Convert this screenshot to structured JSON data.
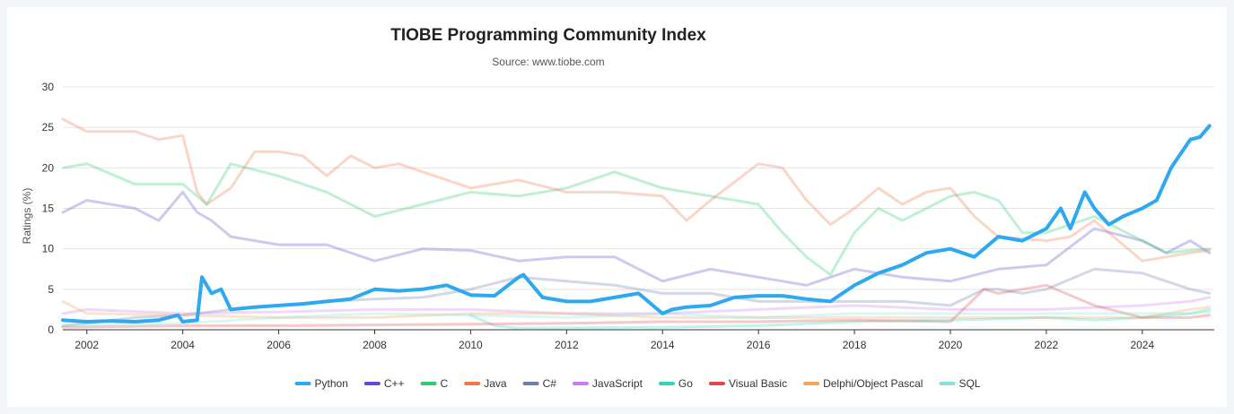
{
  "chart_data": {
    "type": "line",
    "title": "TIOBE Programming Community Index",
    "subtitle": "Source: www.tiobe.com",
    "xlabel": "",
    "ylabel": "Ratings (%)",
    "xlim": [
      2001.5,
      2025.5
    ],
    "ylim": [
      0,
      30
    ],
    "yticks": [
      0,
      5,
      10,
      15,
      20,
      25,
      30
    ],
    "xticks": [
      2002,
      2004,
      2006,
      2008,
      2010,
      2012,
      2014,
      2016,
      2018,
      2020,
      2022,
      2024
    ],
    "grid": true,
    "legend": "bottom",
    "highlighted_series": "Python",
    "series": [
      {
        "name": "Python",
        "color": "#2ea8f0",
        "x": [
          2001.5,
          2002,
          2002.5,
          2003,
          2003.5,
          2003.9,
          2004.0,
          2004.3,
          2004.4,
          2004.6,
          2004.8,
          2005,
          2005.5,
          2006,
          2006.5,
          2007,
          2007.5,
          2008,
          2008.5,
          2009,
          2009.5,
          2010,
          2010.5,
          2011,
          2011.1,
          2011.5,
          2012,
          2012.5,
          2013,
          2013.5,
          2014,
          2014.2,
          2014.5,
          2015,
          2015.5,
          2016,
          2016.5,
          2017,
          2017.5,
          2018,
          2018.5,
          2019,
          2019.5,
          2020,
          2020.5,
          2021,
          2021.5,
          2022,
          2022.3,
          2022.5,
          2022.8,
          2023,
          2023.3,
          2023.6,
          2024,
          2024.3,
          2024.6,
          2025,
          2025.2,
          2025.4
        ],
        "values": [
          1.2,
          1.0,
          1.1,
          1.0,
          1.2,
          1.8,
          1.0,
          1.2,
          6.5,
          4.5,
          5.0,
          2.5,
          2.8,
          3.0,
          3.2,
          3.5,
          3.8,
          5.0,
          4.8,
          5.0,
          5.5,
          4.3,
          4.2,
          6.5,
          6.8,
          4.0,
          3.5,
          3.5,
          4.0,
          4.5,
          2.0,
          2.5,
          2.8,
          3.0,
          4.0,
          4.2,
          4.2,
          3.8,
          3.5,
          5.5,
          7.0,
          8.0,
          9.5,
          10.0,
          9.0,
          11.5,
          11.0,
          12.5,
          15.0,
          12.5,
          17.0,
          15.0,
          13.0,
          14.0,
          15.0,
          16.0,
          20.0,
          23.5,
          23.8,
          25.2
        ]
      },
      {
        "name": "C++",
        "color": "#5a4fcf",
        "x": [
          2001.5,
          2002,
          2003,
          2003.5,
          2004,
          2004.3,
          2004.6,
          2005,
          2006,
          2007,
          2008,
          2009,
          2010,
          2011,
          2012,
          2013,
          2014,
          2015,
          2016,
          2016.5,
          2017,
          2018,
          2019,
          2020,
          2021,
          2022,
          2023,
          2024,
          2024.5,
          2025,
          2025.4
        ],
        "values": [
          14.5,
          16.0,
          15.0,
          13.5,
          17.0,
          14.5,
          13.5,
          11.5,
          10.5,
          10.5,
          8.5,
          10.0,
          9.8,
          8.5,
          9.0,
          9.0,
          6.0,
          7.5,
          6.5,
          6.0,
          5.5,
          7.5,
          6.5,
          6.0,
          7.5,
          8.0,
          12.5,
          11.0,
          9.5,
          11.0,
          9.5
        ]
      },
      {
        "name": "C",
        "color": "#2ecc71",
        "x": [
          2001.5,
          2002,
          2003,
          2004,
          2004.5,
          2005,
          2006,
          2007,
          2008,
          2009,
          2010,
          2011,
          2012,
          2013,
          2014,
          2015,
          2016,
          2016.5,
          2017,
          2017.5,
          2018,
          2018.5,
          2019,
          2020,
          2020.5,
          2021,
          2021.5,
          2022,
          2023,
          2024,
          2024.5,
          2025,
          2025.4
        ],
        "values": [
          20.0,
          20.5,
          18.0,
          18.0,
          15.5,
          20.5,
          19.0,
          17.0,
          14.0,
          15.5,
          17.0,
          16.5,
          17.5,
          19.5,
          17.5,
          16.5,
          15.5,
          12.0,
          9.0,
          6.8,
          12.0,
          15.0,
          13.5,
          16.5,
          17.0,
          16.0,
          12.0,
          12.0,
          14.0,
          11.0,
          9.5,
          9.8,
          10.0
        ]
      },
      {
        "name": "Java",
        "color": "#f07848",
        "x": [
          2001.5,
          2002,
          2003,
          2003.5,
          2004,
          2004.3,
          2004.5,
          2005,
          2005.5,
          2006,
          2006.5,
          2007,
          2007.5,
          2008,
          2008.5,
          2009,
          2010,
          2011,
          2012,
          2013,
          2014,
          2014.5,
          2015,
          2016,
          2016.5,
          2017,
          2017.5,
          2018,
          2018.5,
          2019,
          2019.5,
          2020,
          2020.5,
          2021,
          2022,
          2022.5,
          2023,
          2023.5,
          2024,
          2024.5,
          2025,
          2025.4
        ],
        "values": [
          26.0,
          24.5,
          24.5,
          23.5,
          24.0,
          17.0,
          15.5,
          17.5,
          22.0,
          22.0,
          21.5,
          19.0,
          21.5,
          20.0,
          20.5,
          19.5,
          17.5,
          18.5,
          17.0,
          17.0,
          16.5,
          13.5,
          16.0,
          20.5,
          20.0,
          16.0,
          13.0,
          15.0,
          17.5,
          15.5,
          17.0,
          17.5,
          14.0,
          11.5,
          11.0,
          11.5,
          13.5,
          11.0,
          8.5,
          9.0,
          9.5,
          9.8
        ]
      },
      {
        "name": "C#",
        "color": "#6a7fb0",
        "x": [
          2001.5,
          2002,
          2003,
          2004,
          2005,
          2006,
          2007,
          2008,
          2009,
          2010,
          2011,
          2012,
          2013,
          2014,
          2015,
          2016,
          2017,
          2018,
          2019,
          2020,
          2020.7,
          2021,
          2021.5,
          2022,
          2023,
          2024,
          2024.5,
          2025,
          2025.4
        ],
        "values": [
          0.5,
          0.8,
          1.5,
          1.8,
          2.5,
          3.0,
          3.5,
          3.8,
          4.0,
          5.0,
          6.5,
          6.0,
          5.5,
          4.5,
          4.5,
          3.5,
          3.5,
          3.5,
          3.5,
          3.0,
          5.0,
          5.0,
          4.5,
          5.0,
          7.5,
          7.0,
          6.0,
          5.0,
          4.5
        ]
      },
      {
        "name": "JavaScript",
        "color": "#c97ef0",
        "x": [
          2001.5,
          2002,
          2004,
          2006,
          2008,
          2010,
          2012,
          2014,
          2016,
          2018,
          2020,
          2022,
          2024,
          2025,
          2025.4
        ],
        "values": [
          2.0,
          2.5,
          2.0,
          2.2,
          2.5,
          2.5,
          2.0,
          2.0,
          2.5,
          3.0,
          2.5,
          2.5,
          3.0,
          3.5,
          4.0
        ]
      },
      {
        "name": "Go",
        "color": "#2ed6c0",
        "x": [
          2010,
          2010.5,
          2011,
          2014,
          2016,
          2018,
          2020,
          2022,
          2023,
          2024,
          2025,
          2025.4
        ],
        "values": [
          1.8,
          0.5,
          0.2,
          0.3,
          0.5,
          1.0,
          1.2,
          1.5,
          1.2,
          1.5,
          2.0,
          2.5
        ]
      },
      {
        "name": "Visual Basic",
        "color": "#e04848",
        "x": [
          2001.5,
          2004,
          2006,
          2008,
          2010,
          2012,
          2014,
          2016,
          2018,
          2020,
          2020.7,
          2021,
          2022,
          2023,
          2024,
          2025,
          2025.4
        ],
        "values": [
          0.3,
          0.5,
          0.5,
          0.6,
          0.7,
          0.8,
          1.0,
          1.0,
          1.2,
          1.0,
          5.0,
          4.5,
          5.5,
          3.0,
          1.5,
          1.5,
          1.8
        ]
      },
      {
        "name": "Delphi/Object Pascal",
        "color": "#f2a65a",
        "x": [
          2001.5,
          2002,
          2004,
          2006,
          2008,
          2010,
          2012,
          2014,
          2016,
          2018,
          2020,
          2022,
          2024,
          2025,
          2025.4
        ],
        "values": [
          3.5,
          2.0,
          1.8,
          1.5,
          1.5,
          2.0,
          2.0,
          1.5,
          1.5,
          1.5,
          1.5,
          1.5,
          1.5,
          2.5,
          2.8
        ]
      },
      {
        "name": "SQL",
        "color": "#88e0d8",
        "x": [
          2001.5,
          2004,
          2006,
          2008,
          2010,
          2012,
          2014,
          2016,
          2018,
          2020,
          2022,
          2024,
          2025,
          2025.4
        ],
        "values": [
          0.5,
          0.8,
          1.5,
          2.0,
          1.8,
          1.5,
          2.0,
          1.5,
          2.0,
          2.0,
          2.0,
          2.0,
          2.0,
          2.2
        ]
      }
    ]
  }
}
